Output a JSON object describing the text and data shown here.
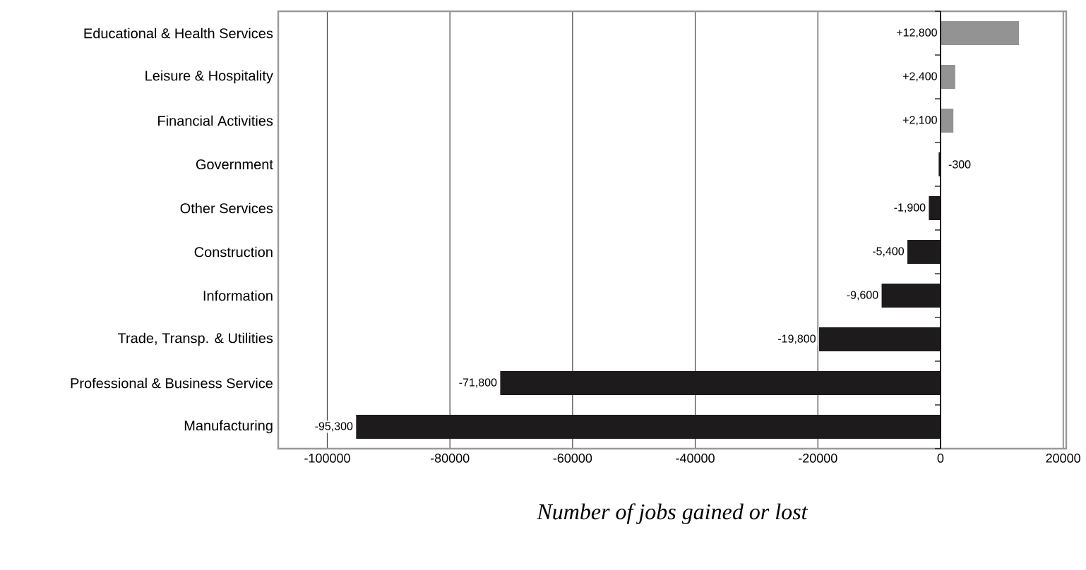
{
  "chart_data": {
    "type": "bar",
    "orientation": "horizontal",
    "xlabel": "Number of jobs gained or lost",
    "categories": [
      "Educational & Health Services",
      "Leisure & Hospitality",
      "Financial Activities",
      "Government",
      "Other Services",
      "Construction",
      "Information",
      "Trade, Transp. & Utilities",
      "Professional & Business Service",
      "Manufacturing"
    ],
    "values": [
      12800,
      2400,
      2100,
      -300,
      -1900,
      -5400,
      -9600,
      -19800,
      -71800,
      -95300
    ],
    "value_labels": [
      "+12,800",
      "+2,400",
      "+2,100",
      "-300",
      "-1,900",
      "-5,400",
      "-9,600",
      "-19,800",
      "-71,800",
      "-95,300"
    ],
    "colors": [
      "#939393",
      "#939393",
      "#939393",
      "#1e1b1c",
      "#1e1b1c",
      "#1e1b1c",
      "#1e1b1c",
      "#1e1b1c",
      "#1e1b1c",
      "#1e1b1c"
    ],
    "xlim": [
      -108000,
      20500
    ],
    "xticks": [
      -100000,
      -80000,
      -60000,
      -40000,
      -20000,
      0,
      20000
    ],
    "grid": "x"
  }
}
